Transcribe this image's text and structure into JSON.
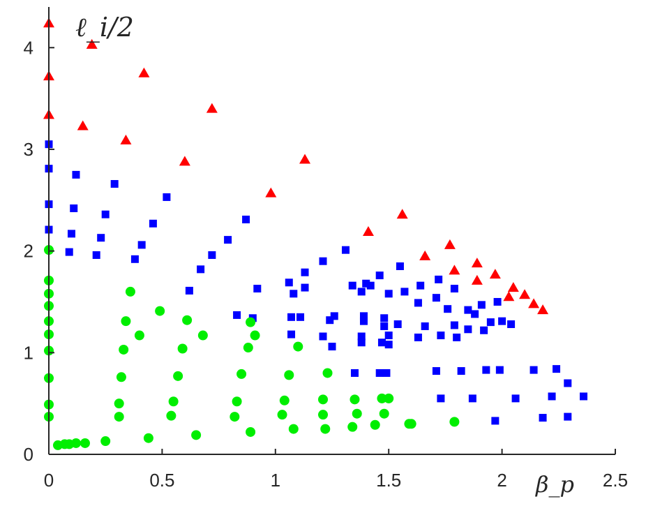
{
  "chart_data": {
    "type": "scatter",
    "title": "",
    "xlabel": "β_p",
    "ylabel": "ℓ_i/2",
    "xlim": [
      0,
      2.5
    ],
    "ylim": [
      0,
      4.4
    ],
    "xticks": [
      "0",
      "0.5",
      "1",
      "1.5",
      "2",
      "2.5"
    ],
    "yticks": [
      "0",
      "1",
      "2",
      "3",
      "4"
    ],
    "grid": false,
    "legend": "none",
    "series": [
      {
        "marker": "triangle",
        "color": "#ff0000",
        "points": [
          [
            0,
            4.24
          ],
          [
            0,
            3.72
          ],
          [
            0,
            3.34
          ],
          [
            0.19,
            4.03
          ],
          [
            0.15,
            3.23
          ],
          [
            0.42,
            3.75
          ],
          [
            0.34,
            3.09
          ],
          [
            0.72,
            3.4
          ],
          [
            0.6,
            2.88
          ],
          [
            1.13,
            2.9
          ],
          [
            0.98,
            2.57
          ],
          [
            1.41,
            2.19
          ],
          [
            1.56,
            2.36
          ],
          [
            1.66,
            1.95
          ],
          [
            1.77,
            2.06
          ],
          [
            1.79,
            1.81
          ],
          [
            1.89,
            1.88
          ],
          [
            1.89,
            1.71
          ],
          [
            1.97,
            1.77
          ],
          [
            2.03,
            1.55
          ],
          [
            2.05,
            1.64
          ],
          [
            2.1,
            1.57
          ],
          [
            2.14,
            1.48
          ],
          [
            2.18,
            1.42
          ]
        ]
      },
      {
        "marker": "square",
        "color": "#0000ff",
        "points": [
          [
            0,
            3.05
          ],
          [
            0,
            2.81
          ],
          [
            0,
            2.46
          ],
          [
            0,
            2.21
          ],
          [
            0.12,
            2.75
          ],
          [
            0.11,
            2.42
          ],
          [
            0.1,
            2.17
          ],
          [
            0.09,
            1.99
          ],
          [
            0.29,
            2.66
          ],
          [
            0.25,
            2.36
          ],
          [
            0.23,
            2.13
          ],
          [
            0.21,
            1.96
          ],
          [
            0.52,
            2.53
          ],
          [
            0.46,
            2.27
          ],
          [
            0.41,
            2.06
          ],
          [
            0.38,
            1.92
          ],
          [
            0.87,
            2.31
          ],
          [
            0.79,
            2.11
          ],
          [
            0.72,
            1.96
          ],
          [
            0.67,
            1.82
          ],
          [
            0.62,
            1.61
          ],
          [
            0.83,
            1.37
          ],
          [
            0.9,
            1.34
          ],
          [
            0.92,
            1.63
          ],
          [
            1.06,
            1.69
          ],
          [
            1.08,
            1.58
          ],
          [
            1.13,
            1.79
          ],
          [
            1.13,
            1.64
          ],
          [
            1.07,
            1.35
          ],
          [
            1.11,
            1.35
          ],
          [
            1.07,
            1.18
          ],
          [
            1.21,
            1.9
          ],
          [
            1.24,
            1.32
          ],
          [
            1.26,
            1.36
          ],
          [
            1.21,
            1.16
          ],
          [
            1.25,
            1.06
          ],
          [
            1.31,
            2.01
          ],
          [
            1.34,
            1.66
          ],
          [
            1.38,
            1.6
          ],
          [
            1.4,
            1.68
          ],
          [
            1.42,
            1.66
          ],
          [
            1.39,
            1.31
          ],
          [
            1.39,
            1.36
          ],
          [
            1.38,
            1.16
          ],
          [
            1.38,
            1.1
          ],
          [
            1.35,
            0.8
          ],
          [
            1.46,
            1.76
          ],
          [
            1.5,
            1.58
          ],
          [
            1.48,
            1.34
          ],
          [
            1.48,
            1.26
          ],
          [
            1.5,
            1.17
          ],
          [
            1.47,
            1.1
          ],
          [
            1.5,
            1.08
          ],
          [
            1.46,
            0.8
          ],
          [
            1.49,
            0.8
          ],
          [
            1.55,
            1.85
          ],
          [
            1.57,
            1.6
          ],
          [
            1.54,
            1.28
          ],
          [
            1.63,
            1.15
          ],
          [
            1.64,
            1.66
          ],
          [
            1.63,
            1.49
          ],
          [
            1.66,
            1.26
          ],
          [
            1.72,
            1.72
          ],
          [
            1.71,
            1.54
          ],
          [
            1.73,
            1.17
          ],
          [
            1.79,
            1.63
          ],
          [
            1.76,
            1.43
          ],
          [
            1.79,
            1.27
          ],
          [
            1.8,
            1.15
          ],
          [
            1.85,
            1.42
          ],
          [
            1.88,
            1.38
          ],
          [
            1.85,
            1.23
          ],
          [
            1.91,
            1.47
          ],
          [
            1.95,
            1.3
          ],
          [
            1.92,
            1.22
          ],
          [
            1.98,
            1.5
          ],
          [
            2.0,
            1.31
          ],
          [
            2.04,
            1.28
          ],
          [
            1.71,
            0.82
          ],
          [
            1.73,
            0.55
          ],
          [
            1.82,
            0.82
          ],
          [
            1.87,
            0.55
          ],
          [
            1.93,
            0.83
          ],
          [
            1.99,
            0.83
          ],
          [
            1.97,
            0.33
          ],
          [
            2.06,
            0.55
          ],
          [
            2.14,
            0.83
          ],
          [
            2.22,
            0.57
          ],
          [
            2.24,
            0.84
          ],
          [
            2.18,
            0.36
          ],
          [
            2.29,
            0.7
          ],
          [
            2.29,
            0.37
          ],
          [
            2.36,
            0.57
          ]
        ]
      },
      {
        "marker": "circle",
        "color": "#00ee00",
        "points": [
          [
            0,
            2.01
          ],
          [
            0,
            1.71
          ],
          [
            0,
            1.58
          ],
          [
            0,
            1.46
          ],
          [
            0,
            1.31
          ],
          [
            0,
            1.18
          ],
          [
            0,
            1.02
          ],
          [
            0,
            0.75
          ],
          [
            0,
            0.49
          ],
          [
            0,
            0.37
          ],
          [
            0.04,
            0.09
          ],
          [
            0.07,
            0.1
          ],
          [
            0.09,
            0.1
          ],
          [
            0.12,
            0.11
          ],
          [
            0.16,
            0.11
          ],
          [
            0.25,
            0.13
          ],
          [
            0.31,
            0.37
          ],
          [
            0.31,
            0.5
          ],
          [
            0.32,
            0.76
          ],
          [
            0.33,
            1.03
          ],
          [
            0.34,
            1.31
          ],
          [
            0.36,
            1.6
          ],
          [
            0.4,
            1.17
          ],
          [
            0.44,
            0.16
          ],
          [
            0.49,
            1.41
          ],
          [
            0.54,
            0.38
          ],
          [
            0.55,
            0.52
          ],
          [
            0.57,
            0.77
          ],
          [
            0.59,
            1.04
          ],
          [
            0.61,
            1.32
          ],
          [
            0.65,
            0.19
          ],
          [
            0.68,
            1.17
          ],
          [
            0.82,
            0.37
          ],
          [
            0.83,
            0.52
          ],
          [
            0.85,
            0.79
          ],
          [
            0.88,
            1.05
          ],
          [
            0.89,
            1.3
          ],
          [
            0.89,
            0.22
          ],
          [
            0.91,
            1.17
          ],
          [
            1.03,
            0.39
          ],
          [
            1.04,
            0.53
          ],
          [
            1.06,
            0.78
          ],
          [
            1.08,
            0.25
          ],
          [
            1.1,
            1.06
          ],
          [
            1.21,
            0.39
          ],
          [
            1.21,
            0.54
          ],
          [
            1.22,
            0.25
          ],
          [
            1.23,
            0.8
          ],
          [
            1.34,
            0.27
          ],
          [
            1.35,
            0.54
          ],
          [
            1.36,
            0.4
          ],
          [
            1.44,
            0.29
          ],
          [
            1.47,
            0.55
          ],
          [
            1.48,
            0.4
          ],
          [
            1.5,
            0.55
          ],
          [
            1.59,
            0.3
          ],
          [
            1.6,
            0.3
          ],
          [
            1.79,
            0.32
          ]
        ]
      }
    ]
  }
}
